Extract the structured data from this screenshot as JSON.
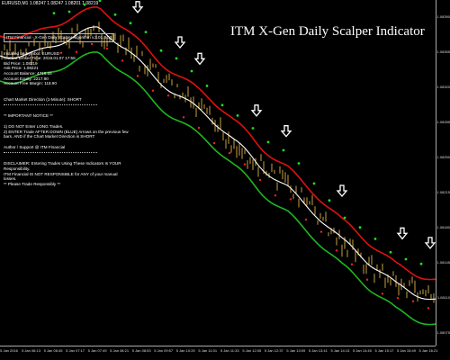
{
  "window": {
    "symbol_bar": "EURUSD,M1 1.08247 1.08247 1.08201 1.08219"
  },
  "overlay_title": "ITM  X-Gen Daily Scalper Indicator",
  "info_panel": {
    "header": "ITM Financial - X-Gen Daily Scalper Algorithm v.3.01.BC2",
    "details": [
      "Installed on Symbol: EURUSD",
      "Current Broker Time: 2016.01.07 17:58",
      "Bid Price: 1.08219",
      "Ask Price: 1.08221",
      "Account Balance:     4716.55",
      "Account Equity:      2217.90",
      "Account Free Margin: 118.90"
    ],
    "direction": "Chart Market Direction (1-Minute):      SHORT",
    "notice_title": "** IMPORTANT NOTICE **",
    "notices": [
      "1) DO NOT Enter LONG Trades.",
      "2) ENTER Trade AFTER DOWN (BLUE) Arrows on the previous few bars. AND if the Chart Market Direction is SHORT"
    ],
    "author": "Author / Support @ ITM Financial",
    "disclaimer": [
      "DISCLAIMER: Entering Trades Using These Indicators Is YOUR Responsibility.",
      "ITM Financial IS NOT RESPONSIBLE for ANY of your manual losses.",
      "** Please Trade Responsibly **"
    ]
  },
  "price_axis": [
    "1.08390",
    "1.08355",
    "1.08320",
    "1.08285",
    "1.08250",
    "1.08215",
    "1.08180",
    "1.08145",
    "1.08110",
    "1.08075"
  ],
  "time_axis": [
    "5 Jan 2016",
    "5 Jan 06:13",
    "5 Jan 06:45",
    "5 Jan 07:17",
    "5 Jan 07:49",
    "5 Jan 08:21",
    "5 Jan 08:53",
    "5 Jan 09:57",
    "5 Jan 10:29",
    "5 Jan 11:01",
    "5 Jan 11:33",
    "5 Jan 12:05",
    "5 Jan 12:37",
    "5 Jan 13:09",
    "5 Jan 13:41",
    "5 Jan 14:13",
    "5 Jan 14:45",
    "5 Jan 15:17",
    "5 Jan 15:49",
    "5 Jan 16:21"
  ],
  "colors": {
    "upper_band": "#e01010",
    "lower_band": "#1fb51f",
    "mid_line": "#ffffff",
    "price_bars": "#c8a040",
    "signal_arrow": "#ffffff",
    "up_dot": "#1fe01f",
    "down_dot": "#ff2020"
  },
  "signals": {
    "sell_arrows_count": 8
  }
}
